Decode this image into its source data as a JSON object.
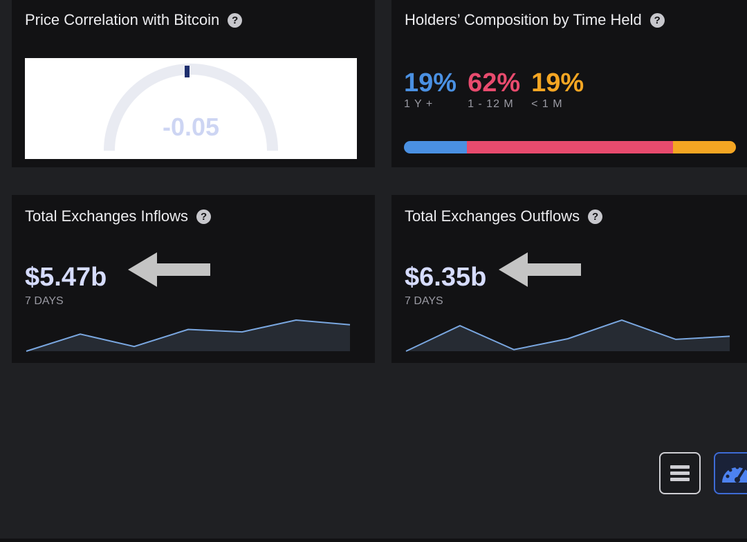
{
  "correlation": {
    "title": "Price Correlation with Bitcoin",
    "value": "-0.05"
  },
  "composition": {
    "title": "Holders’ Composition by Time Held",
    "segments": [
      {
        "pct": "19%",
        "label": "1 Y +",
        "color": "#4a90e2",
        "share": 0.19
      },
      {
        "pct": "62%",
        "label": "1 - 12 M",
        "color": "#e84b6e",
        "share": 0.62
      },
      {
        "pct": "19%",
        "label": "< 1 M",
        "color": "#f5a623",
        "share": 0.19
      }
    ]
  },
  "inflows": {
    "title": "Total Exchanges Inflows",
    "value": "$5.47b",
    "period": "7 DAYS",
    "spark": [
      0,
      0.55,
      0.15,
      0.7,
      0.62,
      1.0,
      0.85
    ]
  },
  "outflows": {
    "title": "Total Exchanges Outflows",
    "value": "$6.35b",
    "period": "7 DAYS",
    "spark": [
      0,
      0.82,
      0.05,
      0.4,
      1.0,
      0.38,
      0.48
    ]
  },
  "controls": {
    "menu_icon": "hamburger-menu-icon",
    "dashboard_icon": "speedometer-icon"
  }
}
